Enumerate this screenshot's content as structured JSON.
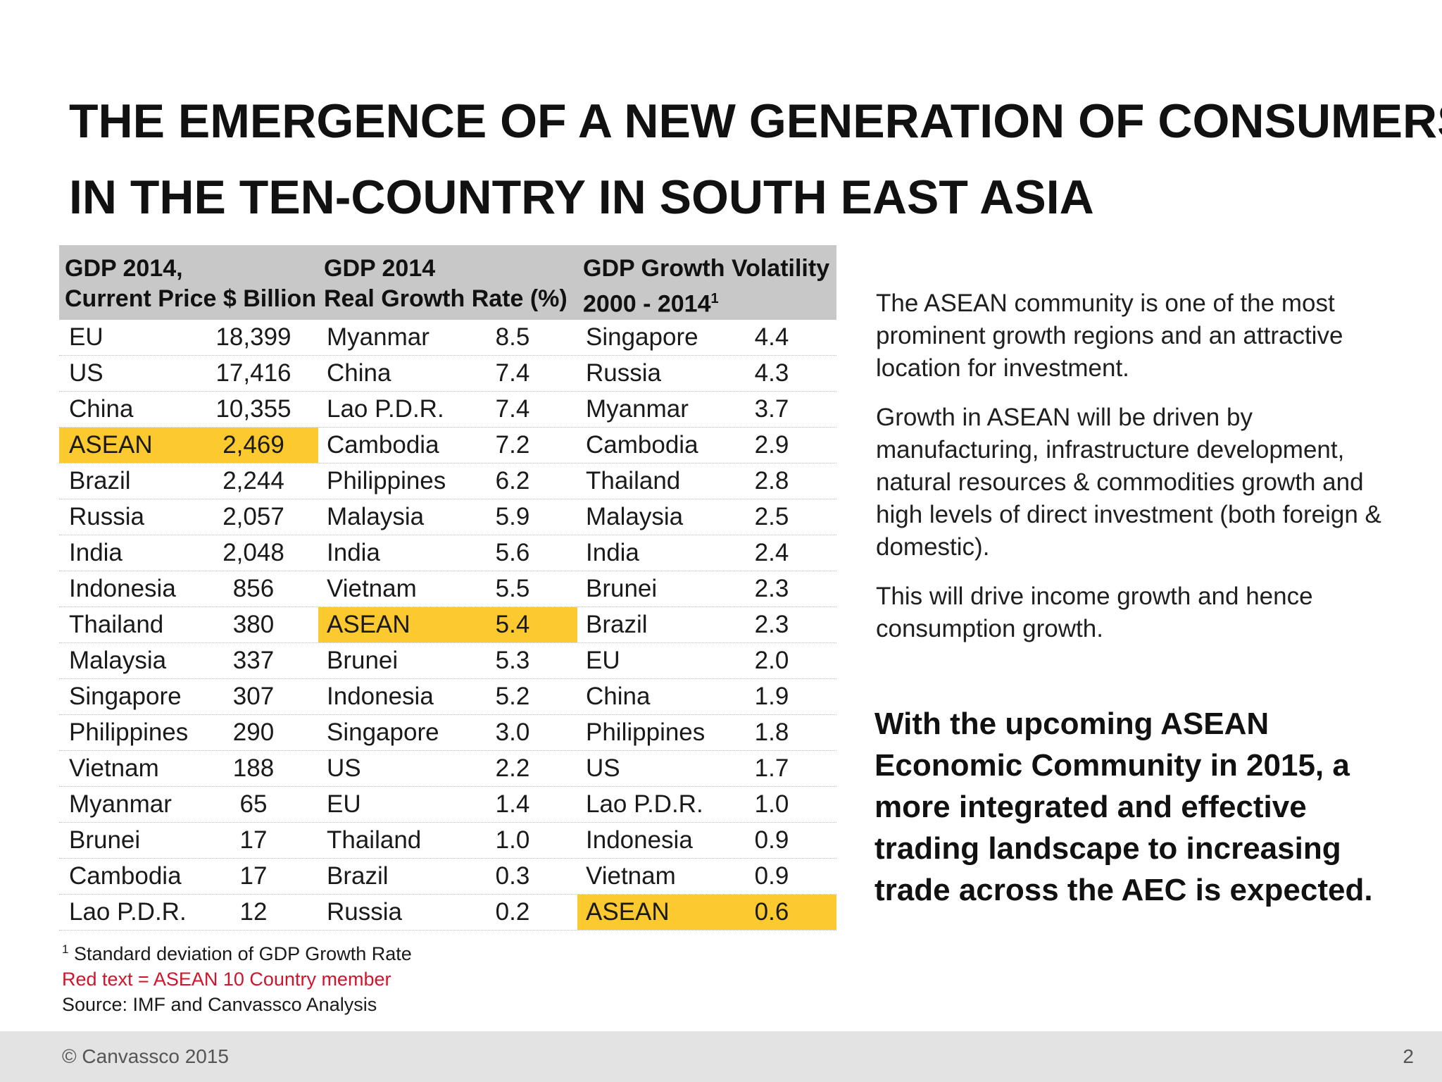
{
  "title": {
    "line1": "THE EMERGENCE OF A NEW GENERATION OF CONSUMERS",
    "line2": "IN THE TEN-COUNTRY IN SOUTH EAST ASIA"
  },
  "table": {
    "headers": [
      {
        "line1": "GDP 2014,",
        "line2": "Current Price $ Billion",
        "sup": ""
      },
      {
        "line1": "GDP 2014",
        "line2": "Real Growth Rate (%)",
        "sup": ""
      },
      {
        "line1": "GDP Growth Volatility",
        "line2": "2000 - 2014",
        "sup": "1"
      }
    ],
    "highlight_color": "#fcc92e",
    "gdp": [
      {
        "country": "EU",
        "value": "18,399"
      },
      {
        "country": "US",
        "value": "17,416"
      },
      {
        "country": "China",
        "value": "10,355"
      },
      {
        "country": "ASEAN",
        "value": "2,469",
        "highlight": true
      },
      {
        "country": "Brazil",
        "value": "2,244"
      },
      {
        "country": "Russia",
        "value": "2,057"
      },
      {
        "country": "India",
        "value": "2,048"
      },
      {
        "country": "Indonesia",
        "value": "856"
      },
      {
        "country": "Thailand",
        "value": "380"
      },
      {
        "country": "Malaysia",
        "value": "337"
      },
      {
        "country": "Singapore",
        "value": "307"
      },
      {
        "country": "Philippines",
        "value": "290"
      },
      {
        "country": "Vietnam",
        "value": "188"
      },
      {
        "country": "Myanmar",
        "value": "65"
      },
      {
        "country": "Brunei",
        "value": "17"
      },
      {
        "country": "Cambodia",
        "value": "17"
      },
      {
        "country": "Lao P.D.R.",
        "value": "12"
      }
    ],
    "growth": [
      {
        "country": "Myanmar",
        "value": "8.5"
      },
      {
        "country": "China",
        "value": "7.4"
      },
      {
        "country": "Lao P.D.R.",
        "value": "7.4"
      },
      {
        "country": "Cambodia",
        "value": "7.2"
      },
      {
        "country": "Philippines",
        "value": "6.2"
      },
      {
        "country": "Malaysia",
        "value": "5.9"
      },
      {
        "country": "India",
        "value": "5.6"
      },
      {
        "country": "Vietnam",
        "value": "5.5"
      },
      {
        "country": "ASEAN",
        "value": "5.4",
        "highlight": true
      },
      {
        "country": "Brunei",
        "value": "5.3"
      },
      {
        "country": "Indonesia",
        "value": "5.2"
      },
      {
        "country": "Singapore",
        "value": "3.0"
      },
      {
        "country": "US",
        "value": "2.2"
      },
      {
        "country": "EU",
        "value": "1.4"
      },
      {
        "country": "Thailand",
        "value": "1.0"
      },
      {
        "country": "Brazil",
        "value": "0.3"
      },
      {
        "country": "Russia",
        "value": "0.2"
      }
    ],
    "volatility": [
      {
        "country": "Singapore",
        "value": "4.4"
      },
      {
        "country": "Russia",
        "value": "4.3"
      },
      {
        "country": "Myanmar",
        "value": "3.7"
      },
      {
        "country": "Cambodia",
        "value": "2.9"
      },
      {
        "country": "Thailand",
        "value": "2.8"
      },
      {
        "country": "Malaysia",
        "value": "2.5"
      },
      {
        "country": "India",
        "value": "2.4"
      },
      {
        "country": "Brunei",
        "value": "2.3"
      },
      {
        "country": "Brazil",
        "value": "2.3"
      },
      {
        "country": "EU",
        "value": "2.0"
      },
      {
        "country": "China",
        "value": "1.9"
      },
      {
        "country": "Philippines",
        "value": "1.8"
      },
      {
        "country": "US",
        "value": "1.7"
      },
      {
        "country": "Lao P.D.R.",
        "value": "1.0"
      },
      {
        "country": "Indonesia",
        "value": "0.9"
      },
      {
        "country": "Vietnam",
        "value": "0.9"
      },
      {
        "country": "ASEAN",
        "value": "0.6",
        "highlight": true
      }
    ]
  },
  "side": {
    "p1": "The ASEAN community is one of the most prominent growth regions and an attractive location for investment.",
    "p2": "Growth in ASEAN will be driven by manufacturing, infrastructure development, natural resources & commodities growth and high levels of direct investment (both foreign & domestic).",
    "p3": "This will drive income growth and hence consumption growth.",
    "emphasis": "With the upcoming ASEAN Economic Community in 2015, a more integrated and effective trading landscape to increasing trade across the AEC is expected."
  },
  "notes": {
    "footnote_mark": "1",
    "footnote": "Standard deviation of GDP Growth Rate",
    "red_note": "Red text = ASEAN 10 Country member",
    "red_color": "#d0142b",
    "source": "Source: IMF and Canvassco Analysis"
  },
  "footer": {
    "copyright": "© Canvassco 2015",
    "page_number": "2"
  }
}
